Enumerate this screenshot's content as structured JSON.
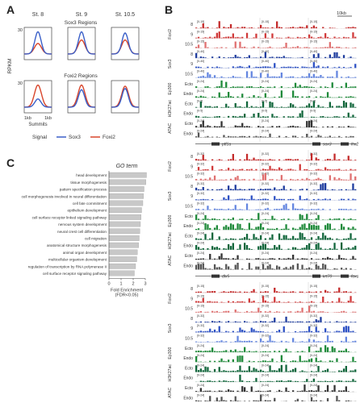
{
  "panels": {
    "a": "A",
    "b": "B",
    "c": "C"
  },
  "panelA": {
    "stages": [
      "St. 8",
      "St. 9",
      "St. 10.5"
    ],
    "sox3_regions": "Sox3 Regions",
    "foxh2_regions": "Foxi2 Regions",
    "ylabel": "RPKM",
    "ytick": "30",
    "xtick_left": "1kb",
    "xtick_right": "1kb",
    "xlabel": "Summits",
    "legend_title": "Signal",
    "legend": [
      {
        "name": "Sox3",
        "color": "#3a5fc8"
      },
      {
        "name": "Foxi2",
        "color": "#d8452b"
      }
    ]
  },
  "panelC": {
    "title": "GO term",
    "xlabel_line1": "Fold Enrichment",
    "xlabel_line2": "(FDR<0.05)",
    "chart_data": {
      "type": "bar",
      "orientation": "horizontal",
      "title": "GO term",
      "xlabel": "Fold Enrichment (FDR<0.05)",
      "xlim": [
        0,
        3
      ],
      "xticks": [
        "0",
        "1",
        "2",
        "3"
      ],
      "categories": [
        "head development",
        "tissue morphogenesis",
        "pattern specification process",
        "cell morphogenesis involved in neural differentiation",
        "cell fate commitment",
        "epithelium development",
        "cell surface receptor linked signaling pathway",
        "nervous system development",
        "neural crest cell differentiation",
        "cell migration",
        "anatomical structure morphogenesis",
        "animal organ development",
        "multicellular organism development",
        "regulation of transcription by RNA polymerase II",
        "cell surface receptor signaling pathway"
      ],
      "values": [
        3.1,
        3.05,
        2.9,
        2.85,
        2.8,
        2.7,
        2.65,
        2.6,
        2.55,
        2.5,
        2.45,
        2.35,
        2.3,
        2.2,
        2.1
      ]
    }
  },
  "panelB": {
    "scale": "10kb",
    "tracks": [
      "Foxi2",
      "Sox3",
      "Ep300",
      "H3K27ac",
      "ATAC"
    ],
    "groups": [
      {
        "genes": [
          "ptf1a",
          "sox3",
          "lhx2"
        ],
        "rows": [
          {
            "label": "8",
            "group": "Foxi2",
            "range": "[0-15]",
            "color": "#c42b2b"
          },
          {
            "label": "9",
            "group": "",
            "range": "[0-15]",
            "color": "#d13a3a"
          },
          {
            "label": "10.5",
            "group": "",
            "range": "[0-15]",
            "color": "#e07070"
          },
          {
            "label": "8",
            "group": "Sox3",
            "range": "[0-40]",
            "color": "#1e3c9e"
          },
          {
            "label": "9",
            "group": "",
            "range": "[0-40]",
            "color": "#2d51c4"
          },
          {
            "label": "10.5",
            "group": "",
            "range": "[0-40]",
            "color": "#6486e0"
          },
          {
            "label": "Ecto",
            "group": "Ep300",
            "range": "[0-24]",
            "color": "#1f8a3a"
          },
          {
            "label": "Endo",
            "group": "",
            "range": "[0-24]",
            "color": "#1f8a3a"
          },
          {
            "label": "Ecto",
            "group": "H3K27ac",
            "range": "[0-5]",
            "color": "#11663b"
          },
          {
            "label": "Endo",
            "group": "",
            "range": "[0-5]",
            "color": "#11663b"
          },
          {
            "label": "Ecto",
            "group": "ATAC",
            "range": "[0-24]",
            "color": "#333333"
          },
          {
            "label": "Endo",
            "group": "",
            "range": "[0-24]",
            "color": "#555555"
          }
        ]
      },
      {
        "genes": [
          "dlx5",
          "krt70",
          "foxd2"
        ],
        "rows": [
          {
            "label": "8",
            "group": "Foxi2",
            "range": "[0-32]",
            "color": "#c42b2b"
          },
          {
            "label": "9",
            "group": "",
            "range": "[0-32]",
            "color": "#d13a3a"
          },
          {
            "label": "10.5",
            "group": "",
            "range": "[0-32]",
            "color": "#e07070"
          },
          {
            "label": "8",
            "group": "Sox3",
            "range": "[0-32]",
            "color": "#1e3c9e"
          },
          {
            "label": "9",
            "group": "",
            "range": "[0-32]",
            "color": "#2d51c4"
          },
          {
            "label": "10.5",
            "group": "",
            "range": "[0-32]",
            "color": "#6486e0"
          },
          {
            "label": "Ecto",
            "group": "Ep300",
            "range": "[0-24]",
            "color": "#1f8a3a"
          },
          {
            "label": "Endo",
            "group": "",
            "range": "[0-24]",
            "color": "#1f8a3a"
          },
          {
            "label": "Ecto",
            "group": "H3K27ac",
            "range": "[0-24]",
            "color": "#11663b"
          },
          {
            "label": "Endo",
            "group": "",
            "range": "[0-24]",
            "color": "#11663b"
          },
          {
            "label": "Ecto",
            "group": "ATAC",
            "range": "[0-24]",
            "color": "#333333"
          },
          {
            "label": "Endo",
            "group": "",
            "range": "[0-24]",
            "color": "#555555"
          }
        ]
      },
      {
        "genes": [
          "tp53",
          "foxi3"
        ],
        "rows": [
          {
            "label": "8",
            "group": "Foxi2",
            "range": "[0-15]",
            "color": "#c42b2b"
          },
          {
            "label": "9",
            "group": "",
            "range": "[0-15]",
            "color": "#d13a3a"
          },
          {
            "label": "10.5",
            "group": "",
            "range": "[0-15]",
            "color": "#e07070"
          },
          {
            "label": "8",
            "group": "Sox3",
            "range": "[0-32]",
            "color": "#1e3c9e"
          },
          {
            "label": "9",
            "group": "",
            "range": "[0-32]",
            "color": "#2d51c4"
          },
          {
            "label": "10.5",
            "group": "",
            "range": "[0-32]",
            "color": "#6486e0"
          },
          {
            "label": "Ecto",
            "group": "Ep300",
            "range": "[0-24]",
            "color": "#1f8a3a"
          },
          {
            "label": "Endo",
            "group": "",
            "range": "[0-24]",
            "color": "#1f8a3a"
          },
          {
            "label": "Ecto",
            "group": "H3K27ac",
            "range": "[0-24]",
            "color": "#11663b"
          },
          {
            "label": "Endo",
            "group": "",
            "range": "[0-24]",
            "color": "#11663b"
          },
          {
            "label": "Ecto",
            "group": "ATAC",
            "range": "[0-24]",
            "color": "#333333"
          },
          {
            "label": "Endo",
            "group": "",
            "range": "[0-24]",
            "color": "#555555"
          }
        ]
      }
    ]
  }
}
